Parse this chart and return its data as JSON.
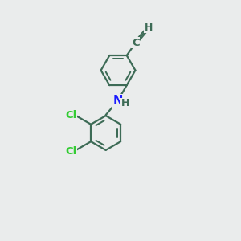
{
  "background_color": "#eaecec",
  "bond_color": "#3d6b56",
  "N_color": "#1a1aff",
  "Cl_color": "#33cc33",
  "line_width": 1.6,
  "font_size_atom": 9.5,
  "figsize": [
    3.0,
    3.0
  ],
  "dpi": 100,
  "xlim": [
    0,
    10
  ],
  "ylim": [
    0,
    10
  ]
}
